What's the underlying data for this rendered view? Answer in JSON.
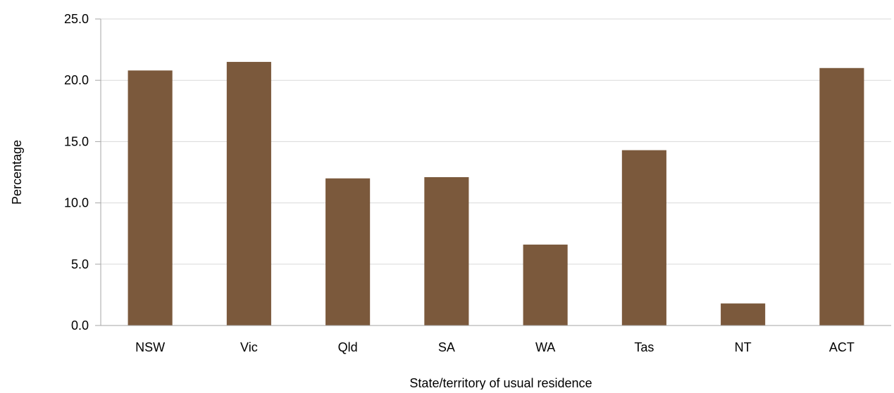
{
  "chart_data": {
    "type": "bar",
    "title": "",
    "xlabel": "State/territory of usual residence",
    "ylabel": "Percentage",
    "categories": [
      "NSW",
      "Vic",
      "Qld",
      "SA",
      "WA",
      "Tas",
      "NT",
      "ACT"
    ],
    "values": [
      20.8,
      21.5,
      12.0,
      12.1,
      6.6,
      14.3,
      1.8,
      21.0
    ],
    "ylim": [
      0,
      25
    ],
    "yticks": [
      "0.0",
      "5.0",
      "10.0",
      "15.0",
      "20.0",
      "25.0"
    ],
    "grid": true,
    "legend": "none",
    "colors": {
      "bar": "#7B593C",
      "grid": "#d9d9d9",
      "axis": "#a6a6a6"
    }
  }
}
